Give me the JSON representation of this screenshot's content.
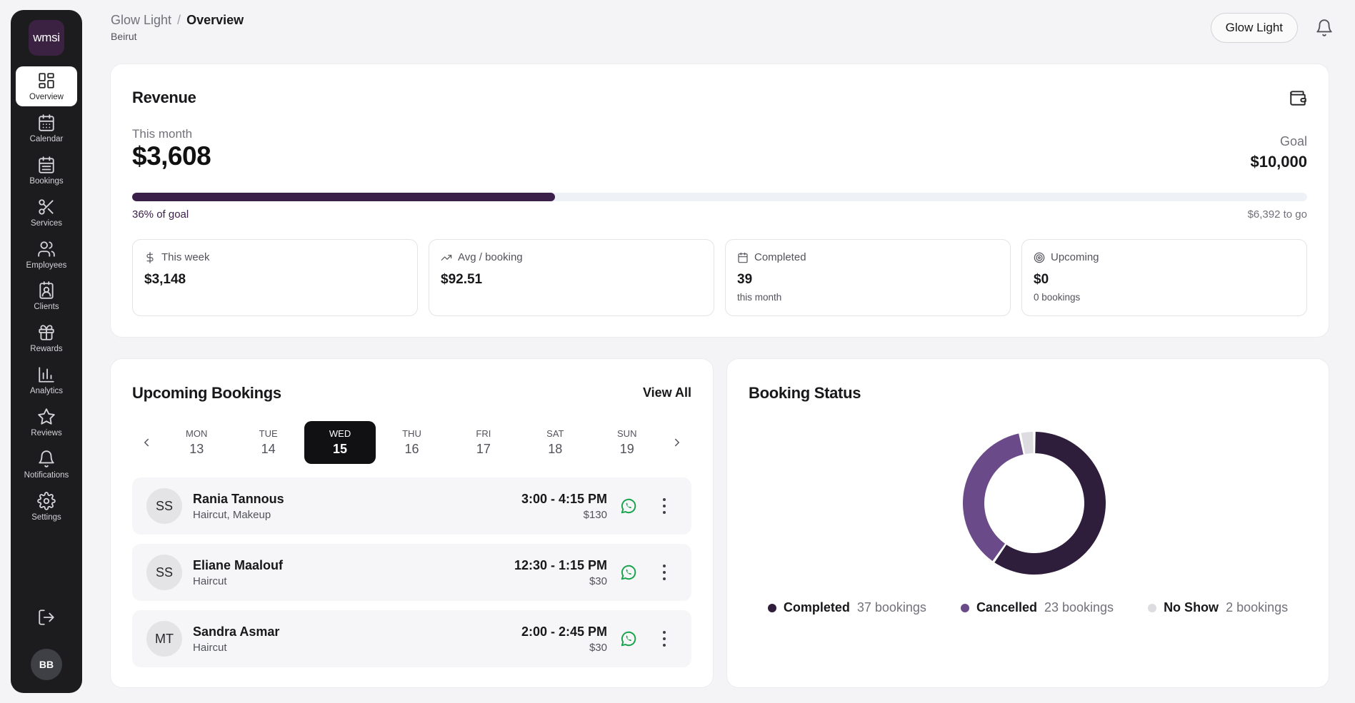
{
  "sidebar": {
    "logo": "wmsi",
    "items": [
      {
        "label": "Overview",
        "icon": "grid-icon"
      },
      {
        "label": "Calendar",
        "icon": "calendar-icon"
      },
      {
        "label": "Bookings",
        "icon": "calendar-grid-icon"
      },
      {
        "label": "Services",
        "icon": "scissors-icon"
      },
      {
        "label": "Employees",
        "icon": "users-icon"
      },
      {
        "label": "Clients",
        "icon": "contact-icon"
      },
      {
        "label": "Rewards",
        "icon": "gift-icon"
      },
      {
        "label": "Analytics",
        "icon": "bar-chart-icon"
      },
      {
        "label": "Reviews",
        "icon": "star-icon"
      },
      {
        "label": "Notifications",
        "icon": "bell-icon"
      },
      {
        "label": "Settings",
        "icon": "gear-icon"
      }
    ],
    "user_initials": "BB"
  },
  "header": {
    "crumb_parent": "Glow Light",
    "crumb_sep": "/",
    "crumb_current": "Overview",
    "location": "Beirut",
    "business_button": "Glow Light"
  },
  "revenue": {
    "title": "Revenue",
    "month_label": "This month",
    "month_value": "$3,608",
    "goal_label": "Goal",
    "goal_value": "$10,000",
    "progress_percent": 36,
    "progress_label": "36% of goal",
    "remaining_label": "$6,392 to go",
    "stats": [
      {
        "label": "This week",
        "value": "$3,148",
        "sub": "",
        "icon": "dollar-icon"
      },
      {
        "label": "Avg / booking",
        "value": "$92.51",
        "sub": "",
        "icon": "trend-up-icon"
      },
      {
        "label": "Completed",
        "value": "39",
        "sub": "this month",
        "icon": "calendar-icon"
      },
      {
        "label": "Upcoming",
        "value": "$0",
        "sub": "0 bookings",
        "icon": "target-icon"
      }
    ]
  },
  "upcoming": {
    "title": "Upcoming Bookings",
    "view_all": "View All",
    "days": [
      {
        "name": "MON",
        "date": "13"
      },
      {
        "name": "TUE",
        "date": "14"
      },
      {
        "name": "WED",
        "date": "15"
      },
      {
        "name": "THU",
        "date": "16"
      },
      {
        "name": "FRI",
        "date": "17"
      },
      {
        "name": "SAT",
        "date": "18"
      },
      {
        "name": "SUN",
        "date": "19"
      }
    ],
    "selected_day": "WED",
    "bookings": [
      {
        "initials": "SS",
        "name": "Rania Tannous",
        "services": "Haircut, Makeup",
        "time": "3:00 - 4:15 PM",
        "price": "$130"
      },
      {
        "initials": "SS",
        "name": "Eliane Maalouf",
        "services": "Haircut",
        "time": "12:30 - 1:15 PM",
        "price": "$30"
      },
      {
        "initials": "MT",
        "name": "Sandra Asmar",
        "services": "Haircut",
        "time": "2:00 - 2:45 PM",
        "price": "$30"
      }
    ]
  },
  "booking_status": {
    "title": "Booking Status",
    "legend": [
      {
        "name": "Completed",
        "count": "37 bookings",
        "color": "#2f1e3b"
      },
      {
        "name": "Cancelled",
        "count": "23 bookings",
        "color": "#6b4a8a"
      },
      {
        "name": "No Show",
        "count": "2 bookings",
        "color": "#dcdce1"
      }
    ]
  },
  "chart_data": {
    "type": "pie",
    "categories": [
      "Completed",
      "Cancelled",
      "No Show"
    ],
    "values": [
      37,
      23,
      2
    ],
    "colors": [
      "#2f1e3b",
      "#6b4a8a",
      "#dcdce1"
    ],
    "title": "Booking Status"
  }
}
